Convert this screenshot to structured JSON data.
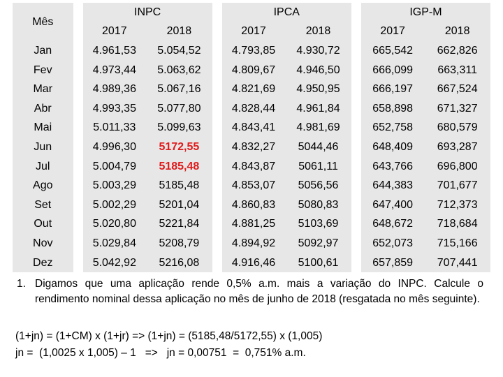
{
  "table": {
    "month_header": "Mês",
    "groups": [
      "INPC",
      "IPCA",
      "IGP-M"
    ],
    "years": [
      "2017",
      "2018"
    ],
    "rows": [
      {
        "month": "Jan",
        "inpc": [
          "4.961,53",
          "5.054,52"
        ],
        "ipca": [
          "4.793,85",
          "4.930,72"
        ],
        "igpm": [
          "665,542",
          "662,826"
        ]
      },
      {
        "month": "Fev",
        "inpc": [
          "4.973,44",
          "5.063,62"
        ],
        "ipca": [
          "4.809,67",
          "4.946,50"
        ],
        "igpm": [
          "666,099",
          "663,311"
        ]
      },
      {
        "month": "Mar",
        "inpc": [
          "4.989,36",
          "5.067,16"
        ],
        "ipca": [
          "4.821,69",
          "4.950,95"
        ],
        "igpm": [
          "666,197",
          "667,524"
        ]
      },
      {
        "month": "Abr",
        "inpc": [
          "4.993,35",
          "5.077,80"
        ],
        "ipca": [
          "4.828,44",
          "4.961,84"
        ],
        "igpm": [
          "658,898",
          "671,327"
        ]
      },
      {
        "month": "Mai",
        "inpc": [
          "5.011,33",
          "5.099,63"
        ],
        "ipca": [
          "4.843,41",
          "4.981,69"
        ],
        "igpm": [
          "652,758",
          "680,579"
        ]
      },
      {
        "month": "Jun",
        "inpc": [
          "4.996,30",
          "5172,55"
        ],
        "ipca": [
          "4.832,27",
          "5044,46"
        ],
        "igpm": [
          "648,409",
          "693,287"
        ]
      },
      {
        "month": "Jul",
        "inpc": [
          "5.004,79",
          "5185,48"
        ],
        "ipca": [
          "4.843,87",
          "5061,11"
        ],
        "igpm": [
          "643,766",
          "696,800"
        ]
      },
      {
        "month": "Ago",
        "inpc": [
          "5.003,29",
          "5185,48"
        ],
        "ipca": [
          "4.853,07",
          "5056,56"
        ],
        "igpm": [
          "644,383",
          "701,677"
        ]
      },
      {
        "month": "Set",
        "inpc": [
          "5.002,29",
          "5201,04"
        ],
        "ipca": [
          "4.860,83",
          "5080,83"
        ],
        "igpm": [
          "647,400",
          "712,373"
        ]
      },
      {
        "month": "Out",
        "inpc": [
          "5.020,80",
          "5221,84"
        ],
        "ipca": [
          "4.881,25",
          "5103,69"
        ],
        "igpm": [
          "648,672",
          "718,684"
        ]
      },
      {
        "month": "Nov",
        "inpc": [
          "5.029,84",
          "5208,79"
        ],
        "ipca": [
          "4.894,92",
          "5092,97"
        ],
        "igpm": [
          "652,073",
          "715,166"
        ]
      },
      {
        "month": "Dez",
        "inpc": [
          "5.042,92",
          "5216,08"
        ],
        "ipca": [
          "4.916,46",
          "5100,61"
        ],
        "igpm": [
          "657,859",
          "707,441"
        ]
      }
    ]
  },
  "question": {
    "number": "1.",
    "text": "Digamos que uma aplicação rende 0,5% a.m. mais a variação do INPC. Calcule o rendimento nominal dessa aplicação no mês de junho de 2018 (resgatada no mês seguinte).",
    "formula_line": "(1+jn) = (1+CM) x (1+jr) => (1+jn) = (5185,48/5172,55) x (1,005)",
    "result_line": "jn =  (1,0025 x 1,005) – 1   =>   jn = 0,00751  =  0,751% a.m."
  }
}
